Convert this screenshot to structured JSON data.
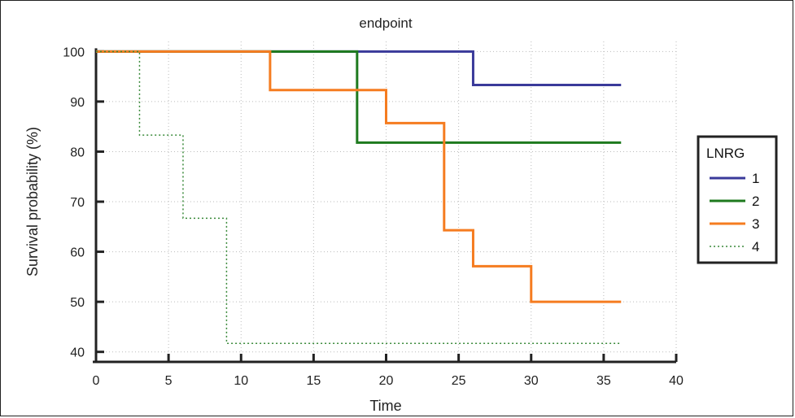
{
  "chart_data": {
    "type": "line",
    "title": "endpoint",
    "xlabel": "Time",
    "ylabel": "Survival probability (%)",
    "xlim": [
      0,
      40
    ],
    "ylim": [
      38,
      102
    ],
    "x_ticks": [
      0,
      5,
      10,
      15,
      20,
      25,
      30,
      35,
      40
    ],
    "y_ticks": [
      40,
      50,
      60,
      70,
      80,
      90,
      100
    ],
    "x_tick_labels": [
      "0",
      "5",
      "10",
      "15",
      "20",
      "25",
      "30",
      "35",
      "40"
    ],
    "y_tick_labels": [
      "40",
      "50",
      "60",
      "70",
      "80",
      "90",
      "100"
    ],
    "grid": true,
    "legend": {
      "title": "LNRG",
      "position": "right"
    },
    "step": true,
    "series": [
      {
        "name": "1",
        "color": "#3a3a9a",
        "style": "solid",
        "x": [
          0,
          26,
          36.2
        ],
        "y": [
          100,
          93.3,
          93.3
        ]
      },
      {
        "name": "2",
        "color": "#1e7a1e",
        "style": "solid",
        "x": [
          0,
          18,
          36.2
        ],
        "y": [
          100,
          81.8,
          81.8
        ]
      },
      {
        "name": "3",
        "color": "#f57c20",
        "style": "solid",
        "x": [
          0,
          12,
          20,
          24,
          26,
          30,
          36.2
        ],
        "y": [
          100,
          92.3,
          85.7,
          64.3,
          57.1,
          50,
          50
        ]
      },
      {
        "name": "4",
        "color": "#3a8a3a",
        "style": "dotted",
        "x": [
          0,
          3,
          6,
          9,
          36.2
        ],
        "y": [
          100,
          83.3,
          66.7,
          41.7,
          41.7
        ]
      }
    ]
  }
}
